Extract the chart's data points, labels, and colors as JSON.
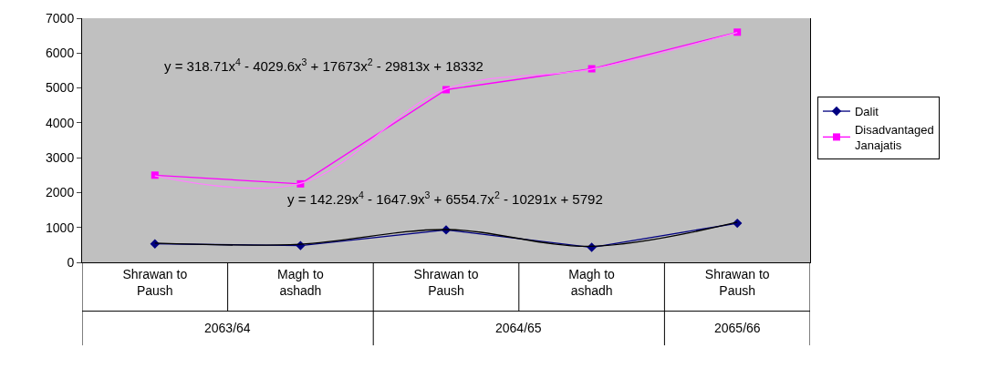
{
  "chart_data": {
    "type": "line",
    "categories": [
      "Shrawan to Paush",
      "Magh to ashadh",
      "Shrawan to Paush",
      "Magh to ashadh",
      "Shrawan to Paush"
    ],
    "series": [
      {
        "name": "Dalit",
        "color": "#000080",
        "values": [
          530,
          480,
          930,
          430,
          1120
        ],
        "marker": "diamond"
      },
      {
        "name": "Disadvantaged Janajatis",
        "color": "#ff00ff",
        "values": [
          2500,
          2250,
          4950,
          5550,
          6600
        ],
        "marker": "square"
      },
      {
        "type": "line",
        "color": "#000000",
        "marker": "none",
        "values": [
          550,
          520,
          940,
          460,
          1150
        ]
      },
      {
        "type": "line",
        "color": "#ff80ff",
        "marker": "none",
        "values": [
          2480,
          2260,
          4970,
          5540,
          6590
        ]
      }
    ],
    "ylim": [
      0,
      7000
    ],
    "yticks": [
      0,
      1000,
      2000,
      3000,
      4000,
      5000,
      6000,
      7000
    ],
    "grid": false,
    "legend": "right",
    "annotations": [
      "y = 318.71x$^{4}$ - 4029.6x$^{3}$ + 17673x$^{2}$ - 29813x + 18332",
      "y = 142.29x$^{4}$ - 1647.9x$^{3}$ + 6554.7x$^{2}$ - 10291x + 5792",
      "2063/64",
      "2064/65",
      "2065/66"
    ]
  }
}
